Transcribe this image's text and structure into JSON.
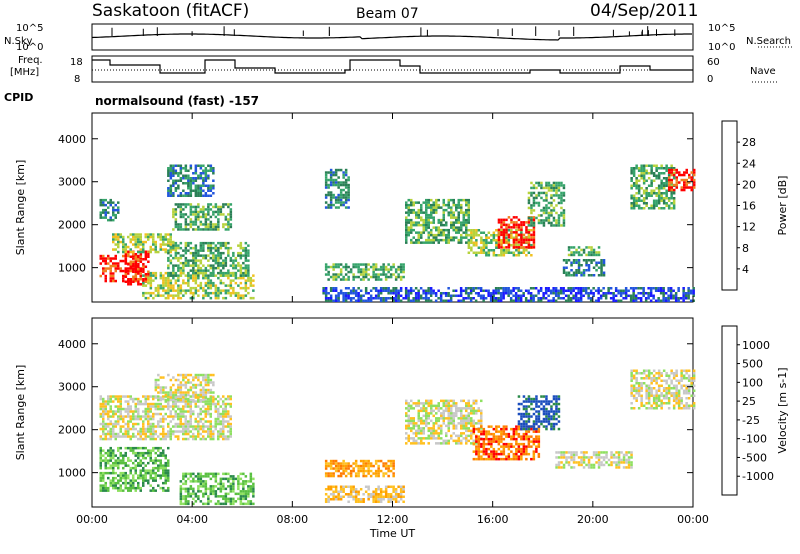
{
  "header": {
    "title": "Saskatoon (fitACF)",
    "beam": "Beam 07",
    "date": "04/Sep/2011"
  },
  "strips": {
    "nsky_label": "N.Sky",
    "nsky_ticks": [
      "10^5",
      "10^0"
    ],
    "nsearch_label": "N.Search",
    "nsearch_ticks": [
      "10^5",
      "10^0"
    ],
    "freq_label_1": "Freq.",
    "freq_label_2": "[MHz]",
    "freq_ticks": [
      "18",
      "8"
    ],
    "nave_label": "Nave",
    "nave_ticks": [
      "60",
      "0"
    ],
    "cpid_label": "CPID",
    "cpid_text": "normalsound (fast) -157"
  },
  "chart_data": [
    {
      "type": "heatmap",
      "name": "power-panel",
      "xlabel": "",
      "ylabel": "Slant Range [km]",
      "xlim": [
        0,
        24
      ],
      "ylim": [
        200,
        4600
      ],
      "yticks": [
        "1000",
        "2000",
        "3000",
        "4000"
      ],
      "colorbar": {
        "label": "Power [dB]",
        "ticks": [
          "4",
          "8",
          "12",
          "16",
          "20",
          "24",
          "28"
        ],
        "colors": [
          "#1a1aff",
          "#2255dd",
          "#2a7f55",
          "#35a46a",
          "#b6d23c",
          "#f0c020",
          "#f08020",
          "#ff0000"
        ]
      },
      "regions": [
        {
          "t0": 0.3,
          "t1": 1.9,
          "r0": 700,
          "r1": 1300,
          "level": 7
        },
        {
          "t0": 1.3,
          "t1": 2.2,
          "r0": 600,
          "r1": 1400,
          "level": 7
        },
        {
          "t0": 0.8,
          "t1": 3.2,
          "r0": 1350,
          "r1": 1800,
          "level": 4
        },
        {
          "t0": 2.0,
          "t1": 6.4,
          "r0": 300,
          "r1": 900,
          "level": 4
        },
        {
          "t0": 3.0,
          "t1": 6.2,
          "r0": 800,
          "r1": 1600,
          "level": 3
        },
        {
          "t0": 3.0,
          "t1": 4.8,
          "r0": 2700,
          "r1": 3400,
          "level": 2
        },
        {
          "t0": 3.2,
          "t1": 5.5,
          "r0": 1900,
          "r1": 2500,
          "level": 3
        },
        {
          "t0": 0.3,
          "t1": 1.0,
          "r0": 2100,
          "r1": 2600,
          "level": 2
        },
        {
          "t0": 9.3,
          "t1": 12.4,
          "r0": 700,
          "r1": 1100,
          "level": 3
        },
        {
          "t0": 9.3,
          "t1": 10.2,
          "r0": 2400,
          "r1": 3300,
          "level": 2
        },
        {
          "t0": 12.5,
          "t1": 15.0,
          "r0": 1600,
          "r1": 2600,
          "level": 3
        },
        {
          "t0": 15.0,
          "t1": 17.5,
          "r0": 1300,
          "r1": 1900,
          "level": 4
        },
        {
          "t0": 16.2,
          "t1": 17.6,
          "r0": 1500,
          "r1": 2200,
          "level": 7
        },
        {
          "t0": 17.4,
          "t1": 18.8,
          "r0": 2000,
          "r1": 3000,
          "level": 3
        },
        {
          "t0": 19.0,
          "t1": 20.2,
          "r0": 1300,
          "r1": 1500,
          "level": 3
        },
        {
          "t0": 18.8,
          "t1": 20.4,
          "r0": 800,
          "r1": 1200,
          "level": 2
        },
        {
          "t0": 21.5,
          "t1": 23.2,
          "r0": 2400,
          "r1": 3400,
          "level": 3
        },
        {
          "t0": 23.0,
          "t1": 24.0,
          "r0": 2800,
          "r1": 3300,
          "level": 7
        },
        {
          "t0": 9.2,
          "t1": 24.0,
          "r0": 250,
          "r1": 550,
          "level": 1
        }
      ]
    },
    {
      "type": "heatmap",
      "name": "velocity-panel",
      "xlabel": "Time UT",
      "ylabel": "Slant Range [km]",
      "xlim": [
        0,
        24
      ],
      "ylim": [
        200,
        4600
      ],
      "yticks": [
        "1000",
        "2000",
        "3000",
        "4000"
      ],
      "xticks": [
        "00:00",
        "04:00",
        "08:00",
        "12:00",
        "16:00",
        "20:00",
        "00:00"
      ],
      "colorbar": {
        "label": "Velocity [m s-1]",
        "ticks": [
          "1000",
          "500",
          "100",
          "25",
          "-25",
          "-100",
          "-500",
          "-1000"
        ],
        "colors": [
          "#1a4dbd",
          "#2a8a4a",
          "#59c040",
          "#8ee060",
          "#c8c8c8",
          "#ffc020",
          "#ffa000",
          "#ff7a00",
          "#ff0000"
        ]
      },
      "regions": [
        {
          "t0": 0.3,
          "t1": 3.0,
          "r0": 600,
          "r1": 1600,
          "level": 2
        },
        {
          "t0": 3.5,
          "t1": 6.4,
          "r0": 300,
          "r1": 1000,
          "level": 2
        },
        {
          "t0": 0.3,
          "t1": 5.5,
          "r0": 1800,
          "r1": 2800,
          "level": 4
        },
        {
          "t0": 2.5,
          "t1": 4.8,
          "r0": 2700,
          "r1": 3300,
          "level": 4
        },
        {
          "t0": 9.3,
          "t1": 12.4,
          "r0": 300,
          "r1": 700,
          "level": 5
        },
        {
          "t0": 9.3,
          "t1": 12.0,
          "r0": 900,
          "r1": 1300,
          "level": 6
        },
        {
          "t0": 12.5,
          "t1": 15.5,
          "r0": 1700,
          "r1": 2700,
          "level": 4
        },
        {
          "t0": 15.2,
          "t1": 17.8,
          "r0": 1300,
          "r1": 2100,
          "level": 7
        },
        {
          "t0": 17.0,
          "t1": 18.6,
          "r0": 2000,
          "r1": 2800,
          "level": 0
        },
        {
          "t0": 18.5,
          "t1": 21.5,
          "r0": 1100,
          "r1": 1500,
          "level": 4
        },
        {
          "t0": 21.5,
          "t1": 24.0,
          "r0": 2500,
          "r1": 3400,
          "level": 4
        }
      ]
    }
  ]
}
